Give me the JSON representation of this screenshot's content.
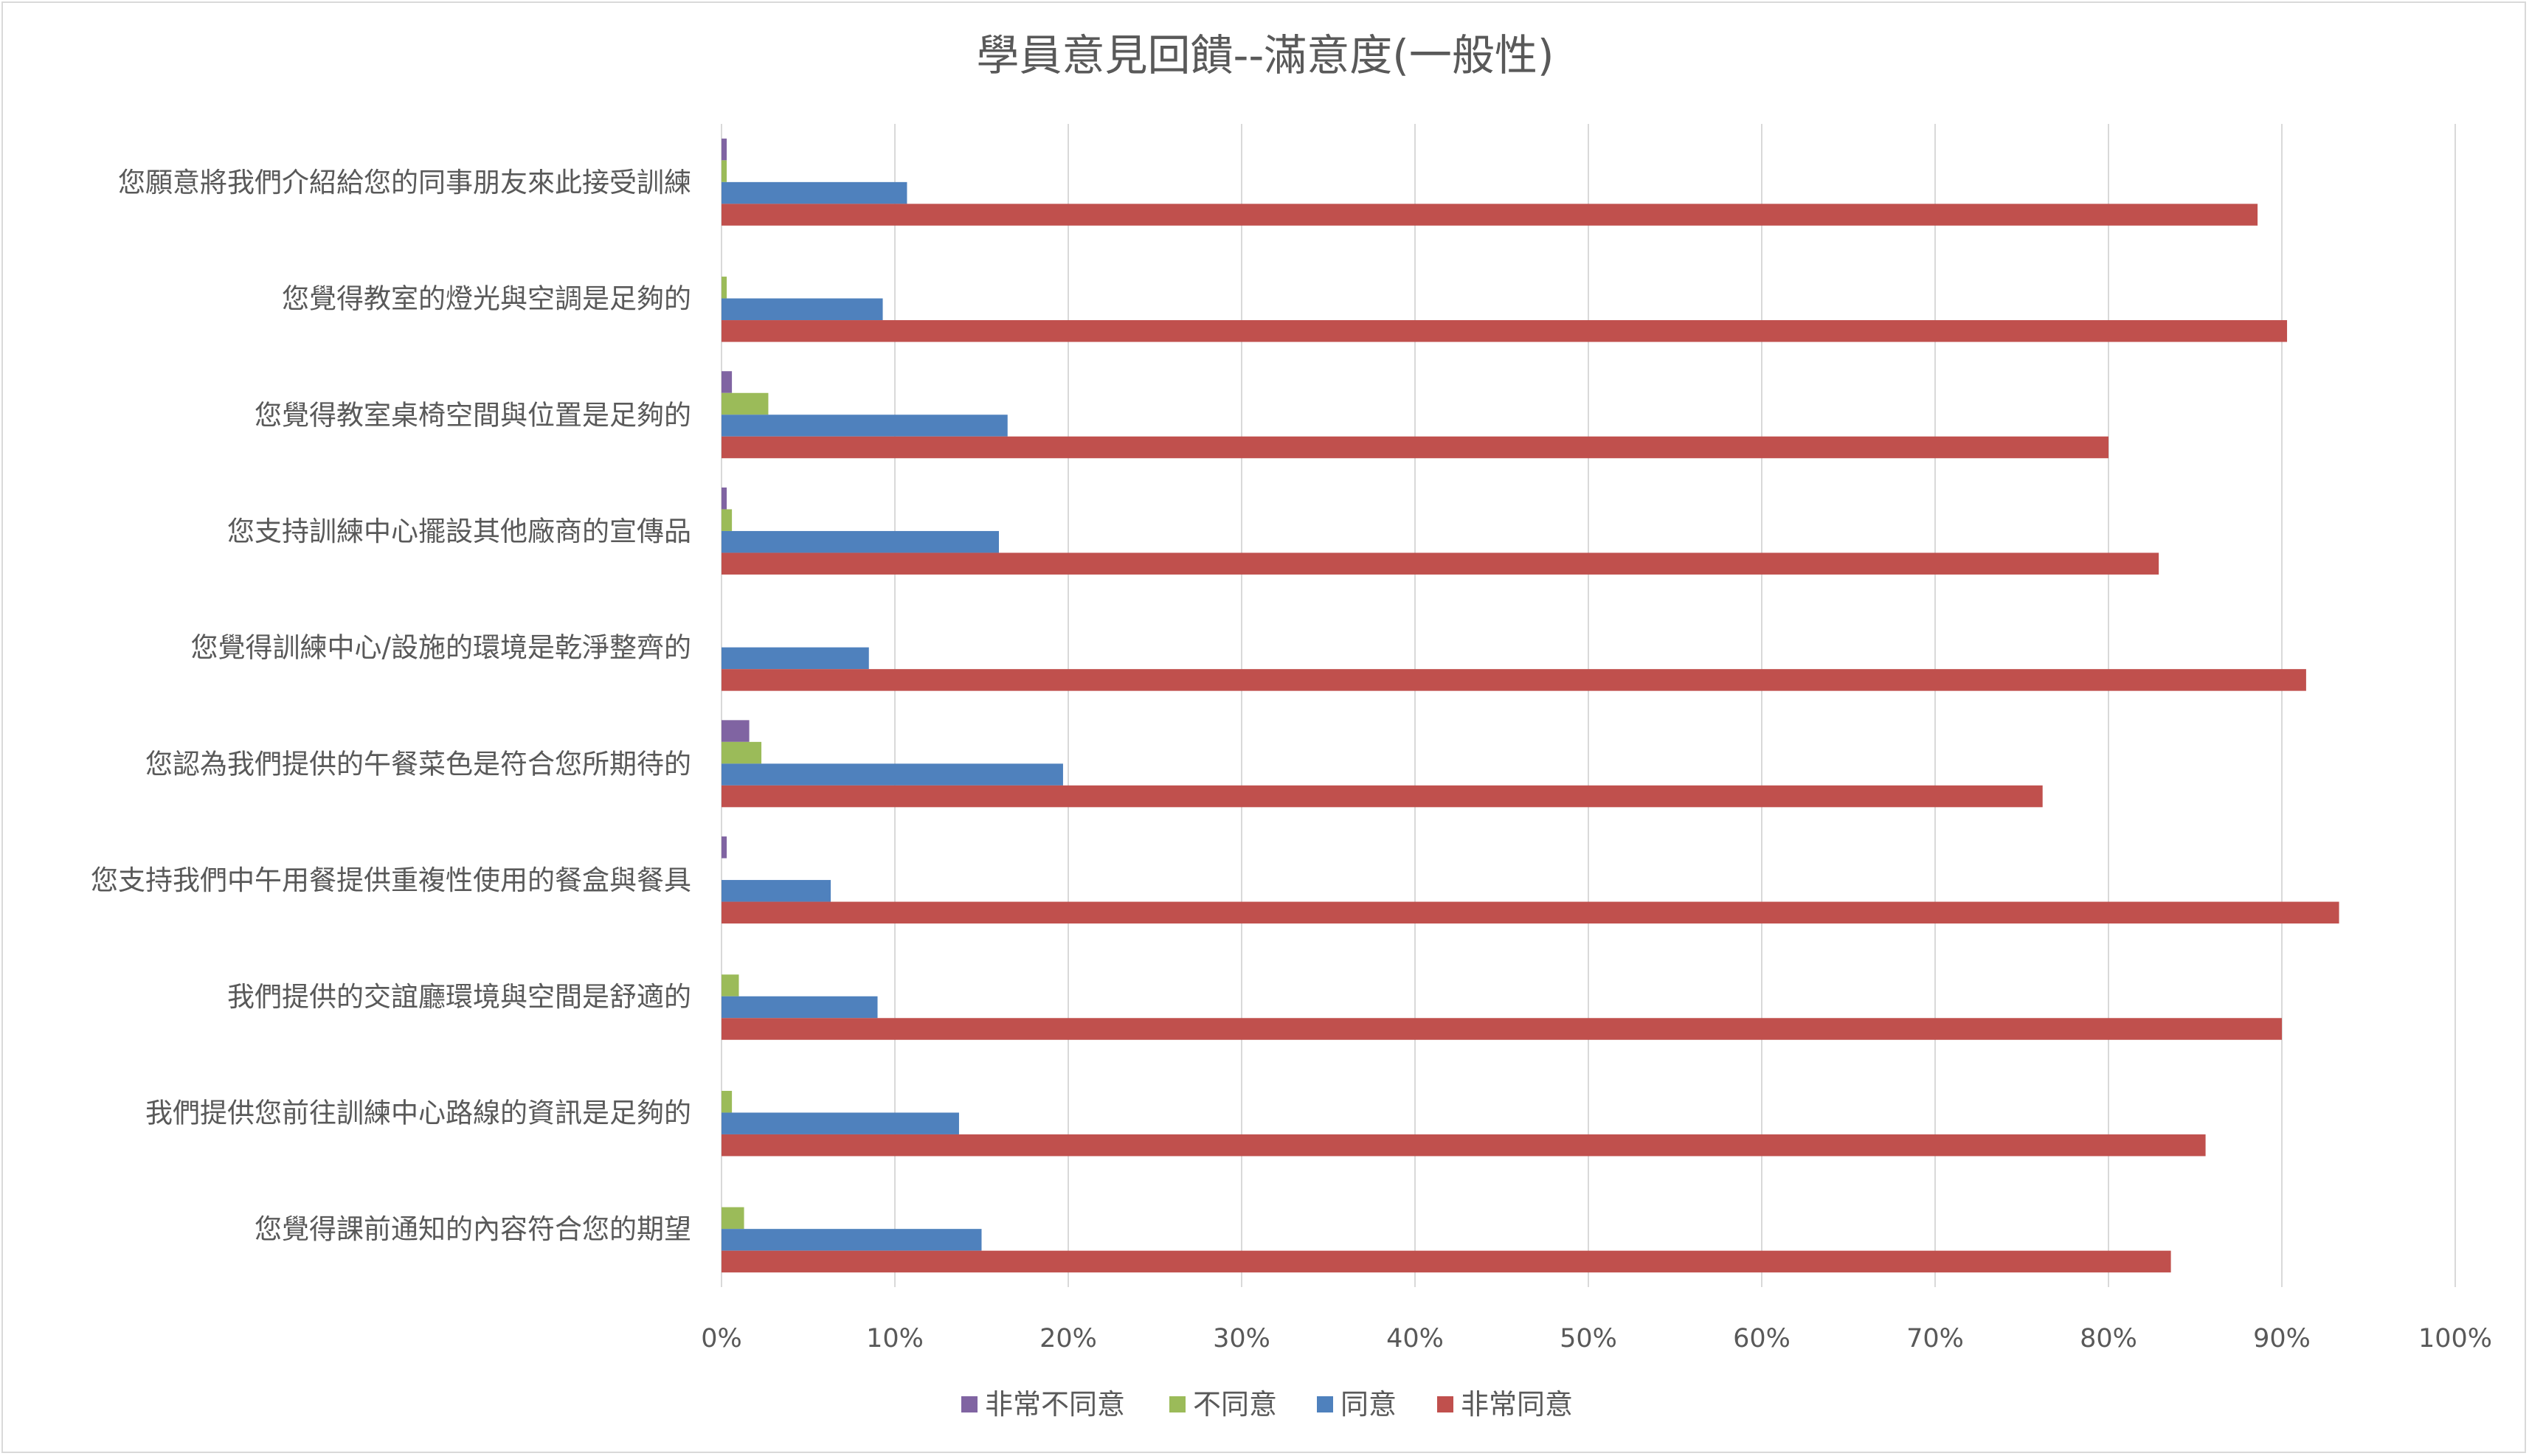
{
  "chart_data": {
    "type": "bar",
    "orientation": "horizontal",
    "title": "學員意見回饋--滿意度(一般性)",
    "categories": [
      "您願意將我們介紹給您的同事朋友來此接受訓練",
      "您覺得教室的燈光與空調是足夠的",
      "您覺得教室桌椅空間與位置是足夠的",
      "您支持訓練中心擺設其他廠商的宣傳品",
      "您覺得訓練中心/設施的環境是乾淨整齊的",
      "您認為我們提供的午餐菜色是符合您所期待的",
      "您支持我們中午用餐提供重複性使用的餐盒與餐具",
      "我們提供的交誼廳環境與空間是舒適的",
      "我們提供您前往訓練中心路線的資訊是足夠的",
      "您覺得課前通知的內容符合您的期望"
    ],
    "series": [
      {
        "name": "非常不同意",
        "color": "#8064a2",
        "values": [
          0.3,
          0,
          0.6,
          0.3,
          0,
          1.6,
          0.3,
          0,
          0,
          0
        ]
      },
      {
        "name": "不同意",
        "color": "#9bbb59",
        "values": [
          0.3,
          0.3,
          2.7,
          0.6,
          0,
          2.3,
          0,
          1.0,
          0.6,
          1.3
        ]
      },
      {
        "name": "同意",
        "color": "#4f81bd",
        "values": [
          10.7,
          9.3,
          16.5,
          16.0,
          8.5,
          19.7,
          6.3,
          9.0,
          13.7,
          15.0
        ]
      },
      {
        "name": "非常同意",
        "color": "#c0504d",
        "values": [
          88.6,
          90.3,
          80.0,
          82.9,
          91.4,
          76.2,
          93.3,
          90.0,
          85.6,
          83.6
        ]
      }
    ],
    "xlim": [
      0,
      100
    ],
    "x_ticks": [
      "0%",
      "10%",
      "20%",
      "30%",
      "40%",
      "50%",
      "60%",
      "70%",
      "80%",
      "90%",
      "100%"
    ],
    "grid": "vertical",
    "legend_position": "bottom",
    "colors": {
      "text": "#595959",
      "grid": "#d9d9d9",
      "border": "#d9d9d9"
    }
  }
}
